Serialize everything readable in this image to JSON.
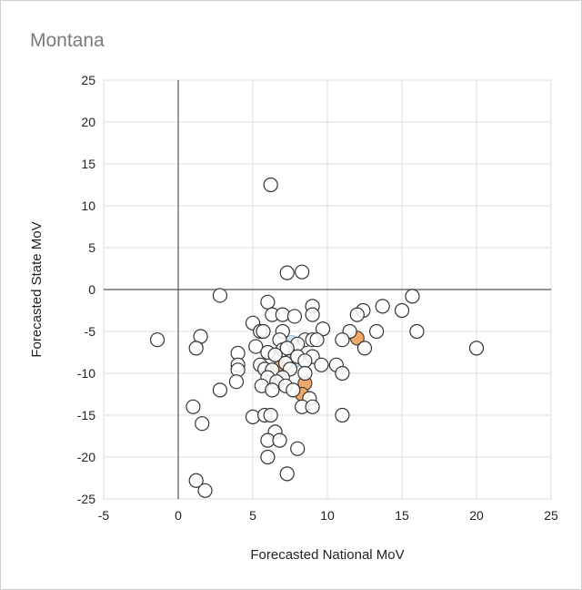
{
  "title": "Montana",
  "chart_data": {
    "type": "scatter",
    "title": "Montana",
    "xlabel": "Forecasted National MoV",
    "ylabel": "Forecasted State MoV",
    "xlim": [
      -5,
      25
    ],
    "ylim": [
      -25,
      25
    ],
    "xticks": [
      -5,
      0,
      5,
      10,
      15,
      20,
      25
    ],
    "yticks": [
      25,
      20,
      15,
      10,
      5,
      0,
      -5,
      -10,
      -15,
      -20,
      -25
    ],
    "grid": true,
    "colors": {
      "point_fill": "#ffffff",
      "point_stroke": "#333333",
      "highlight_orange": "#f0a868",
      "highlight_blue": "#cfe3f5",
      "grid": "#dddddd",
      "zero_line": "#555555"
    },
    "highlighted_orange": [
      {
        "x": 12.0,
        "y": -5.8
      },
      {
        "x": 6.8,
        "y": -9.3
      },
      {
        "x": 8.5,
        "y": -11.2
      },
      {
        "x": 8.3,
        "y": -12.5
      }
    ],
    "highlighted_blue": [
      {
        "x": 7.6,
        "y": -6.3
      },
      {
        "x": 7.8,
        "y": -8.5
      }
    ],
    "points": [
      {
        "x": 6.2,
        "y": 12.5
      },
      {
        "x": 7.3,
        "y": 2.0
      },
      {
        "x": 8.3,
        "y": 2.1
      },
      {
        "x": 2.8,
        "y": -0.7
      },
      {
        "x": 15.7,
        "y": -0.8
      },
      {
        "x": 6.0,
        "y": -1.5
      },
      {
        "x": 9.0,
        "y": -2.0
      },
      {
        "x": 13.7,
        "y": -2.0
      },
      {
        "x": 12.4,
        "y": -2.5
      },
      {
        "x": 15.0,
        "y": -2.5
      },
      {
        "x": 6.3,
        "y": -3.0
      },
      {
        "x": 7.0,
        "y": -3.0
      },
      {
        "x": 9.0,
        "y": -3.0
      },
      {
        "x": 12.0,
        "y": -3.0
      },
      {
        "x": 7.8,
        "y": -3.2
      },
      {
        "x": 5.0,
        "y": -4.0
      },
      {
        "x": 9.7,
        "y": -4.7
      },
      {
        "x": 5.5,
        "y": -5.0
      },
      {
        "x": 5.7,
        "y": -5.0
      },
      {
        "x": 7.0,
        "y": -5.0
      },
      {
        "x": 11.5,
        "y": -5.0
      },
      {
        "x": 13.3,
        "y": -5.0
      },
      {
        "x": 16.0,
        "y": -5.0
      },
      {
        "x": 1.5,
        "y": -5.6
      },
      {
        "x": -1.4,
        "y": -6.0
      },
      {
        "x": 6.8,
        "y": -6.0
      },
      {
        "x": 8.5,
        "y": -6.0
      },
      {
        "x": 9.0,
        "y": -6.0
      },
      {
        "x": 9.3,
        "y": -6.0
      },
      {
        "x": 11.0,
        "y": -6.0
      },
      {
        "x": 8.0,
        "y": -6.5
      },
      {
        "x": 5.2,
        "y": -6.8
      },
      {
        "x": 1.2,
        "y": -7.0
      },
      {
        "x": 12.5,
        "y": -7.0
      },
      {
        "x": 20.0,
        "y": -7.0
      },
      {
        "x": 7.0,
        "y": -7.2
      },
      {
        "x": 7.3,
        "y": -7.0
      },
      {
        "x": 6.0,
        "y": -7.5
      },
      {
        "x": 4.0,
        "y": -7.6
      },
      {
        "x": 6.5,
        "y": -7.8
      },
      {
        "x": 8.0,
        "y": -8.0
      },
      {
        "x": 9.0,
        "y": -8.0
      },
      {
        "x": 8.5,
        "y": -8.5
      },
      {
        "x": 7.2,
        "y": -8.8
      },
      {
        "x": 10.6,
        "y": -9.0
      },
      {
        "x": 4.0,
        "y": -9.0
      },
      {
        "x": 5.5,
        "y": -9.0
      },
      {
        "x": 9.6,
        "y": -9.0
      },
      {
        "x": 5.8,
        "y": -9.5
      },
      {
        "x": 4.0,
        "y": -9.6
      },
      {
        "x": 7.5,
        "y": -9.5
      },
      {
        "x": 6.3,
        "y": -9.6
      },
      {
        "x": 8.5,
        "y": -10.0
      },
      {
        "x": 11.0,
        "y": -10.0
      },
      {
        "x": 6.0,
        "y": -10.5
      },
      {
        "x": 7.0,
        "y": -10.5
      },
      {
        "x": 3.9,
        "y": -11.0
      },
      {
        "x": 6.6,
        "y": -11.0
      },
      {
        "x": 5.6,
        "y": -11.5
      },
      {
        "x": 7.2,
        "y": -11.5
      },
      {
        "x": 2.8,
        "y": -12.0
      },
      {
        "x": 6.3,
        "y": -12.0
      },
      {
        "x": 7.7,
        "y": -12.0
      },
      {
        "x": 8.8,
        "y": -13.0
      },
      {
        "x": 1.0,
        "y": -14.0
      },
      {
        "x": 8.3,
        "y": -14.0
      },
      {
        "x": 9.0,
        "y": -14.0
      },
      {
        "x": 5.0,
        "y": -15.2
      },
      {
        "x": 5.8,
        "y": -15.0
      },
      {
        "x": 6.2,
        "y": -15.0
      },
      {
        "x": 11.0,
        "y": -15.0
      },
      {
        "x": 1.6,
        "y": -16.0
      },
      {
        "x": 6.5,
        "y": -17.0
      },
      {
        "x": 6.0,
        "y": -18.0
      },
      {
        "x": 6.8,
        "y": -18.0
      },
      {
        "x": 8.0,
        "y": -19.0
      },
      {
        "x": 6.0,
        "y": -20.0
      },
      {
        "x": 7.3,
        "y": -22.0
      },
      {
        "x": 1.2,
        "y": -22.8
      },
      {
        "x": 1.8,
        "y": -24.0
      }
    ]
  }
}
